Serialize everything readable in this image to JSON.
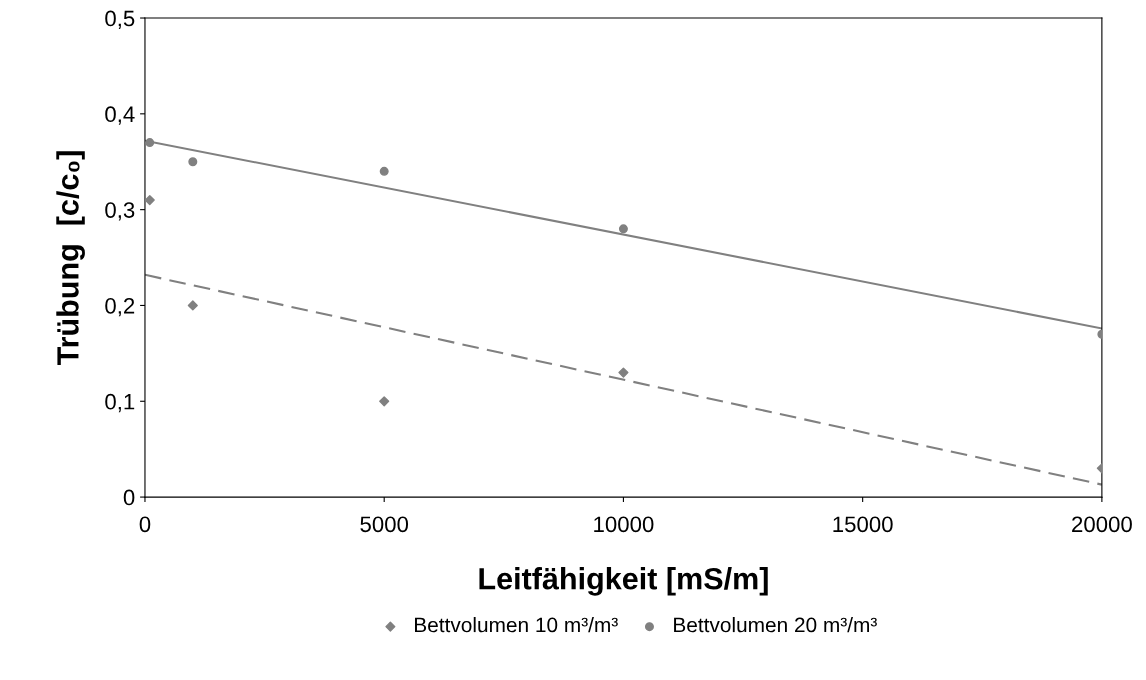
{
  "chart_data": {
    "type": "scatter",
    "xlabel": "Leitfähigkeit [mS/m]",
    "ylabel": "Trübung  [c/c₀]",
    "series": [
      {
        "name": "Bettvolumen 10 m³/m³",
        "color": "#808080",
        "marker": "diamond",
        "x": [
          100,
          1000,
          5000,
          10000,
          20000
        ],
        "values": [
          0.31,
          0.2,
          0.1,
          0.13,
          0.03
        ]
      },
      {
        "name": "Bettvolumen 20 m³/m³",
        "color": "#808080",
        "marker": "circle",
        "x": [
          100,
          1000,
          5000,
          10000,
          20000
        ],
        "values": [
          0.37,
          0.35,
          0.34,
          0.28,
          0.17
        ]
      },
      {
        "type": "line",
        "color": "#808080",
        "line_style": "dashed",
        "marker": "none",
        "x": [
          0,
          20000
        ],
        "values": [
          0.232,
          0.013
        ]
      },
      {
        "type": "line",
        "color": "#808080",
        "line_style": "solid",
        "marker": "none",
        "x": [
          0,
          20000
        ],
        "values": [
          0.372,
          0.176
        ]
      }
    ],
    "xlim": [
      0,
      20000
    ],
    "xticks": [
      0,
      5000,
      10000,
      15000,
      20000
    ],
    "ylim": [
      0,
      0.5
    ],
    "yticks": [
      0,
      {
        "value": 0.1,
        "label": "0,1"
      },
      {
        "value": 0.2,
        "label": "0,2"
      },
      {
        "value": 0.3,
        "label": "0,3"
      },
      {
        "value": 0.4,
        "label": "0,4"
      },
      {
        "value": 0.5,
        "label": "0,5"
      }
    ],
    "grid": false,
    "legend": "bottom"
  }
}
